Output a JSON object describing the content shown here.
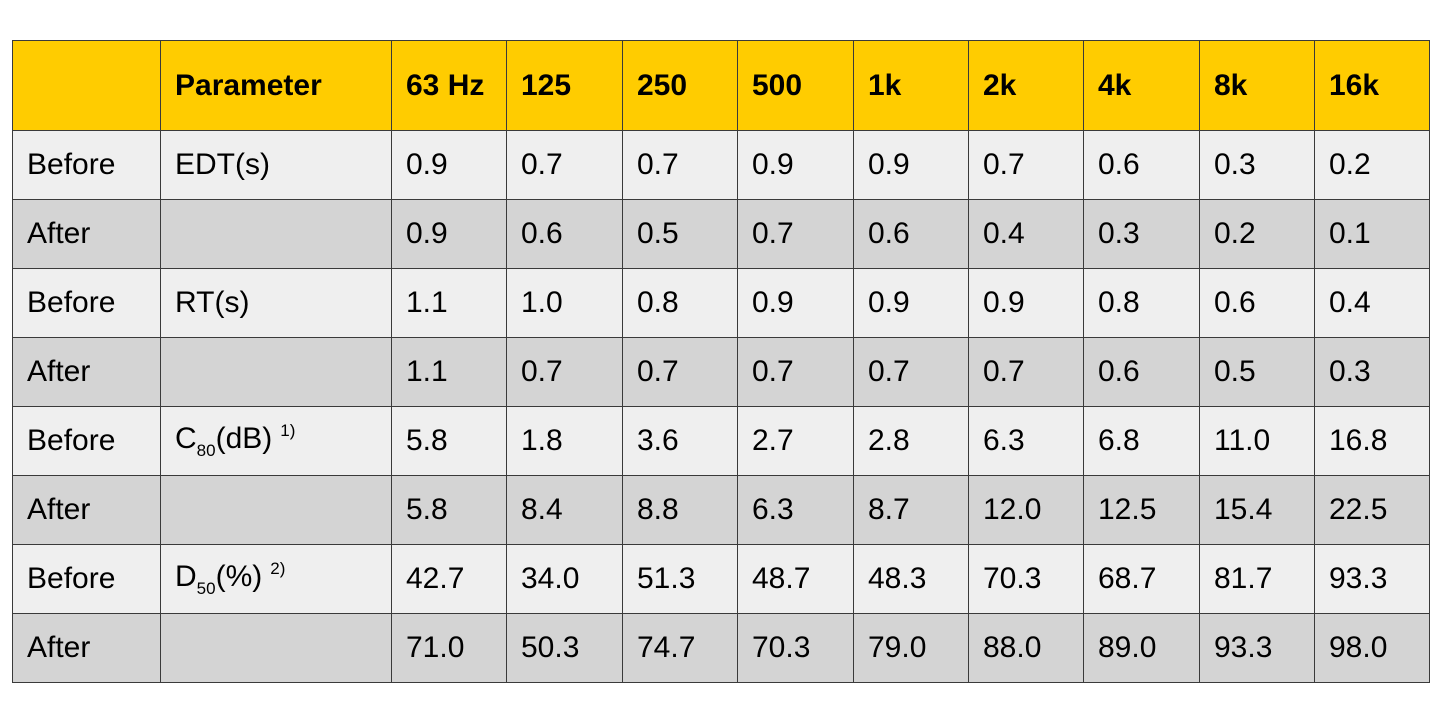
{
  "table": {
    "header": [
      "Parameter",
      "63 Hz",
      "125",
      "250",
      "500",
      "1k",
      "2k",
      "4k",
      "8k",
      "16k"
    ],
    "rows": [
      {
        "label": "Before",
        "parameter": {
          "text": "EDT(s)"
        },
        "values": [
          "0.9",
          "0.7",
          "0.7",
          "0.9",
          "0.9",
          "0.7",
          "0.6",
          "0.3",
          "0.2"
        ]
      },
      {
        "label": "After",
        "values": [
          "0.9",
          "0.6",
          "0.5",
          "0.7",
          "0.6",
          "0.4",
          "0.3",
          "0.2",
          "0.1"
        ]
      },
      {
        "label": "Before",
        "parameter": {
          "text": "RT(s)"
        },
        "values": [
          "1.1",
          "1.0",
          "0.8",
          "0.9",
          "0.9",
          "0.9",
          "0.8",
          "0.6",
          "0.4"
        ]
      },
      {
        "label": "After",
        "values": [
          "1.1",
          "0.7",
          "0.7",
          "0.7",
          "0.7",
          "0.7",
          "0.6",
          "0.5",
          "0.3"
        ]
      },
      {
        "label": "Before",
        "parameter": {
          "text": "C",
          "sub": "80",
          "suffix": "(dB)",
          "note": "1)"
        },
        "values": [
          "5.8",
          "1.8",
          "3.6",
          "2.7",
          "2.8",
          "6.3",
          "6.8",
          "11.0",
          "16.8"
        ]
      },
      {
        "label": "After",
        "values": [
          "5.8",
          "8.4",
          "8.8",
          "6.3",
          "8.7",
          "12.0",
          "12.5",
          "15.4",
          "22.5"
        ]
      },
      {
        "label": "Before",
        "parameter": {
          "text": "D",
          "sub": "50",
          "suffix": "(%)",
          "note": "2)"
        },
        "values": [
          "42.7",
          "34.0",
          "51.3",
          "48.7",
          "48.3",
          "70.3",
          "68.7",
          "81.7",
          "93.3"
        ]
      },
      {
        "label": "After",
        "values": [
          "71.0",
          "50.3",
          "74.7",
          "70.3",
          "79.0",
          "88.0",
          "89.0",
          "93.3",
          "98.0"
        ]
      }
    ]
  }
}
